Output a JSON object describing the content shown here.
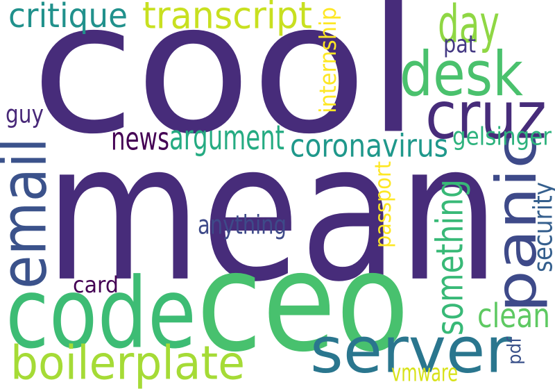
{
  "words": [
    {
      "text": "cool",
      "color": "#472c7a"
    },
    {
      "text": "mean",
      "color": "#472c7a"
    },
    {
      "text": "ceo",
      "color": "#48c16e"
    },
    {
      "text": "code",
      "color": "#3dbc74"
    },
    {
      "text": "server",
      "color": "#2a768e"
    },
    {
      "text": "panic",
      "color": "#3e4a89"
    },
    {
      "text": "desk",
      "color": "#4ac16d"
    },
    {
      "text": "cruz",
      "color": "#472c7a"
    },
    {
      "text": "email",
      "color": "#3b528b"
    },
    {
      "text": "boilerplate",
      "color": "#a5db36"
    },
    {
      "text": "transcript",
      "color": "#c8e020"
    },
    {
      "text": "day",
      "color": "#8fd744"
    },
    {
      "text": "critique",
      "color": "#21918c"
    },
    {
      "text": "argument",
      "color": "#25ab82"
    },
    {
      "text": "coronavirus",
      "color": "#1f988b"
    },
    {
      "text": "news",
      "color": "#440154"
    },
    {
      "text": "something",
      "color": "#38b977"
    },
    {
      "text": "clean",
      "color": "#5ec962"
    },
    {
      "text": "internship",
      "color": "#fde725"
    },
    {
      "text": "passport",
      "color": "#fde725"
    },
    {
      "text": "anything",
      "color": "#3e4a89"
    },
    {
      "text": "gelsinger",
      "color": "#2db27d"
    },
    {
      "text": "security",
      "color": "#355f8d"
    },
    {
      "text": "pat",
      "color": "#443983"
    },
    {
      "text": "guy",
      "color": "#482878"
    },
    {
      "text": "card",
      "color": "#440154"
    },
    {
      "text": "pdf",
      "color": "#3b528b"
    },
    {
      "text": "vmware",
      "color": "#d8e219"
    }
  ]
}
